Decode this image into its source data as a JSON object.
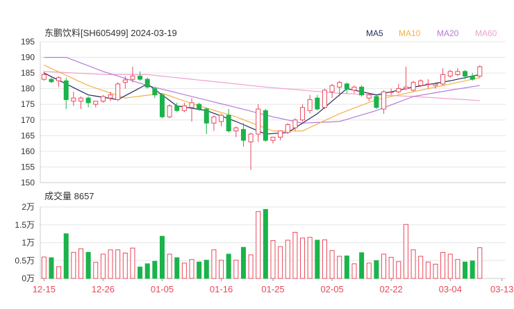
{
  "chart_data": [
    {
      "type": "candlestick",
      "title": "东鹏饮料[SH605499] 2024-03-19",
      "legend": [
        {
          "name": "MA5",
          "color": "#1f2a5a"
        },
        {
          "name": "MA10",
          "color": "#f5b041"
        },
        {
          "name": "MA20",
          "color": "#b57ad6"
        },
        {
          "name": "MA60",
          "color": "#f0a0cf"
        }
      ],
      "legend_position": "top-right",
      "y_ticks": [
        "195",
        "190",
        "185",
        "180",
        "175",
        "170",
        "165",
        "160",
        "155",
        "150"
      ],
      "ylim": [
        150,
        195
      ],
      "grid": true,
      "up_color": "#e8485a",
      "down_color": "#1bb34a",
      "candles": [
        [
          183,
          185.5,
          182.5,
          184.5
        ],
        [
          183,
          183.5,
          181.8,
          182.2
        ],
        [
          182.5,
          184,
          180.5,
          183.5
        ],
        [
          182.5,
          183.5,
          173.5,
          176.5
        ],
        [
          176,
          179,
          174.5,
          177
        ],
        [
          176,
          177.5,
          173.5,
          177
        ],
        [
          177,
          177.5,
          174,
          175.5
        ],
        [
          175,
          176,
          174,
          176
        ],
        [
          176,
          178,
          175.5,
          177.5
        ],
        [
          177,
          179,
          176,
          178
        ],
        [
          176.5,
          182,
          176,
          181.5
        ],
        [
          182,
          184,
          180,
          182.8
        ],
        [
          183,
          187,
          182,
          184
        ],
        [
          184,
          185.5,
          182.5,
          183
        ],
        [
          183,
          183.5,
          180,
          180.5
        ],
        [
          180,
          180.5,
          177,
          178
        ],
        [
          178,
          178.5,
          170.5,
          171
        ],
        [
          171,
          175,
          170.5,
          174.5
        ],
        [
          174.5,
          175.5,
          172.5,
          173
        ],
        [
          173,
          175.5,
          172.5,
          174.5
        ],
        [
          174,
          177,
          169.5,
          175.5
        ],
        [
          175,
          175.5,
          173,
          173.5
        ],
        [
          173.5,
          174,
          165.5,
          169
        ],
        [
          169,
          171.5,
          166.5,
          171
        ],
        [
          169.5,
          172,
          168,
          171.5
        ],
        [
          171.5,
          173.5,
          166,
          166.5
        ],
        [
          166.5,
          168,
          164.5,
          167.5
        ],
        [
          167,
          169,
          161.5,
          163.5
        ],
        [
          163,
          166,
          154,
          165.5
        ],
        [
          165.5,
          175,
          163,
          173.5
        ],
        [
          173,
          173.5,
          163,
          163.5
        ],
        [
          163.5,
          164.5,
          162.5,
          164.5
        ],
        [
          164.5,
          166.5,
          163.5,
          166.5
        ],
        [
          166,
          169,
          165.5,
          168.5
        ],
        [
          167.5,
          170.5,
          166.5,
          170
        ],
        [
          170,
          175,
          169.5,
          174
        ],
        [
          173,
          178,
          172,
          176.5
        ],
        [
          177,
          178,
          173,
          173.5
        ],
        [
          174,
          180,
          173.5,
          179.5
        ],
        [
          179,
          181.5,
          177,
          181
        ],
        [
          180.5,
          182.5,
          177.5,
          182
        ],
        [
          181.5,
          182,
          178.5,
          180
        ],
        [
          179.5,
          181,
          178.5,
          180.5
        ],
        [
          180.5,
          181,
          177.5,
          178
        ],
        [
          177,
          178.5,
          176,
          178
        ],
        [
          177.5,
          178,
          173.5,
          174
        ],
        [
          173.5,
          179.5,
          172,
          179
        ],
        [
          179,
          180,
          178,
          179
        ],
        [
          179,
          181.5,
          178.5,
          180
        ],
        [
          180,
          187,
          179.5,
          180.5
        ],
        [
          179.5,
          182.5,
          179,
          182
        ],
        [
          181,
          183,
          180.5,
          182.5
        ],
        [
          181.5,
          183,
          180,
          181.5
        ],
        [
          181,
          182,
          180,
          181.5
        ],
        [
          181.5,
          186.5,
          181,
          184.5
        ],
        [
          184,
          186,
          183.5,
          185.5
        ],
        [
          184.5,
          186.5,
          184,
          185.5
        ],
        [
          185.5,
          186,
          183,
          184
        ],
        [
          184,
          185,
          182.5,
          183
        ],
        [
          184,
          187.5,
          183.5,
          187
        ]
      ],
      "ma": {
        "MA5": [
          [
            0,
            185
          ],
          [
            6,
            178
          ],
          [
            10,
            176.5
          ],
          [
            14,
            181.5
          ],
          [
            18,
            174.5
          ],
          [
            22,
            173
          ],
          [
            26,
            169.5
          ],
          [
            30,
            165.5
          ],
          [
            33,
            166
          ],
          [
            37,
            172
          ],
          [
            41,
            180
          ],
          [
            45,
            178
          ],
          [
            50,
            180.5
          ],
          [
            55,
            182.5
          ],
          [
            59,
            184.5
          ]
        ],
        "MA10": [
          [
            0,
            187.5
          ],
          [
            6,
            181
          ],
          [
            11,
            177
          ],
          [
            16,
            178.5
          ],
          [
            21,
            174.5
          ],
          [
            26,
            171
          ],
          [
            31,
            166.5
          ],
          [
            35,
            166.5
          ],
          [
            40,
            172
          ],
          [
            45,
            176.5
          ],
          [
            50,
            179
          ],
          [
            55,
            181.5
          ],
          [
            59,
            183.5
          ]
        ],
        "MA20": [
          [
            0,
            190
          ],
          [
            3,
            190
          ],
          [
            8,
            185.5
          ],
          [
            14,
            181
          ],
          [
            20,
            177.5
          ],
          [
            26,
            174
          ],
          [
            31,
            171
          ],
          [
            35,
            169
          ],
          [
            40,
            169.5
          ],
          [
            45,
            173
          ],
          [
            50,
            177.5
          ],
          [
            55,
            179.5
          ],
          [
            59,
            181
          ]
        ],
        "MA60": [
          [
            0,
            185.5
          ],
          [
            8,
            184.5
          ],
          [
            14,
            184.5
          ],
          [
            22,
            182.5
          ],
          [
            30,
            180.5
          ],
          [
            40,
            178.5
          ],
          [
            50,
            177.5
          ],
          [
            59,
            176.2
          ]
        ]
      }
    },
    {
      "type": "bar",
      "title": "成交量 8657",
      "y_ticks": [
        "2万",
        "1.5万",
        "1万",
        "0.5万",
        "0万"
      ],
      "ylim": [
        0,
        20000
      ],
      "grid": true,
      "x_tick_labels": [
        "12-15",
        "12-26",
        "01-05",
        "01-16",
        "01-25",
        "02-05",
        "02-22",
        "03-04",
        "03-13"
      ],
      "x_tick_indices": [
        0,
        8,
        16,
        24,
        31,
        39,
        47,
        55,
        62
      ],
      "values": [
        6000,
        5800,
        3300,
        12500,
        7300,
        8300,
        7300,
        4500,
        6800,
        8000,
        8000,
        7100,
        8500,
        3200,
        4100,
        4800,
        11800,
        6800,
        5800,
        4300,
        5300,
        4600,
        5100,
        8000,
        5100,
        6800,
        5100,
        8700,
        6600,
        18700,
        19300,
        10600,
        8900,
        10700,
        12900,
        11300,
        11500,
        10700,
        10800,
        7800,
        6200,
        6300,
        4100,
        7200,
        4300,
        5000,
        6800,
        5900,
        4700,
        15100,
        8000,
        6200,
        4600,
        4000,
        7300,
        6800,
        5300,
        4600,
        4900,
        8600
      ]
    }
  ]
}
